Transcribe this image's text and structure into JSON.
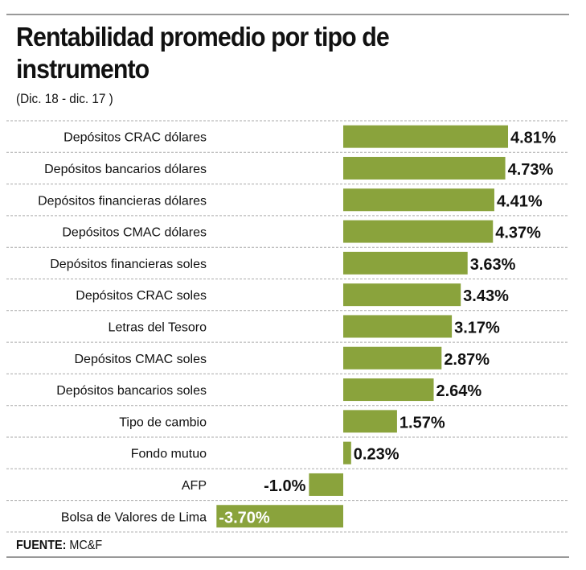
{
  "chart_data": {
    "type": "bar",
    "orientation": "horizontal",
    "title": "Rentabilidad promedio por tipo de instrumento",
    "subtitle": "(Dic. 18 - dic. 17 )",
    "categories": [
      "Depósitos CRAC dólares",
      "Depósitos bancarios dólares",
      "Depósitos financieras dólares",
      "Depósitos CMAC dólares",
      "Depósitos financieras soles",
      "Depósitos CRAC soles",
      "Letras del Tesoro",
      "Depósitos CMAC soles",
      "Depósitos bancarios soles",
      "Tipo de cambio",
      "Fondo mutuo",
      "AFP",
      "Bolsa de Valores de Lima"
    ],
    "values": [
      4.81,
      4.73,
      4.41,
      4.37,
      3.63,
      3.43,
      3.17,
      2.87,
      2.64,
      1.57,
      0.23,
      -1.0,
      -3.7
    ],
    "data_labels": [
      "4.81%",
      "4.73%",
      "4.41%",
      "4.37%",
      "3.63%",
      "3.43%",
      "3.17%",
      "2.87%",
      "2.64%",
      "1.57%",
      "0.23%",
      "-1.0%",
      "-3.70%"
    ],
    "unit": "%",
    "xlim": [
      -3.7,
      4.81
    ],
    "grid": "dotted row separators",
    "bar_color": "#8aa33c",
    "source_label": "FUENTE:",
    "source": "MC&F"
  }
}
